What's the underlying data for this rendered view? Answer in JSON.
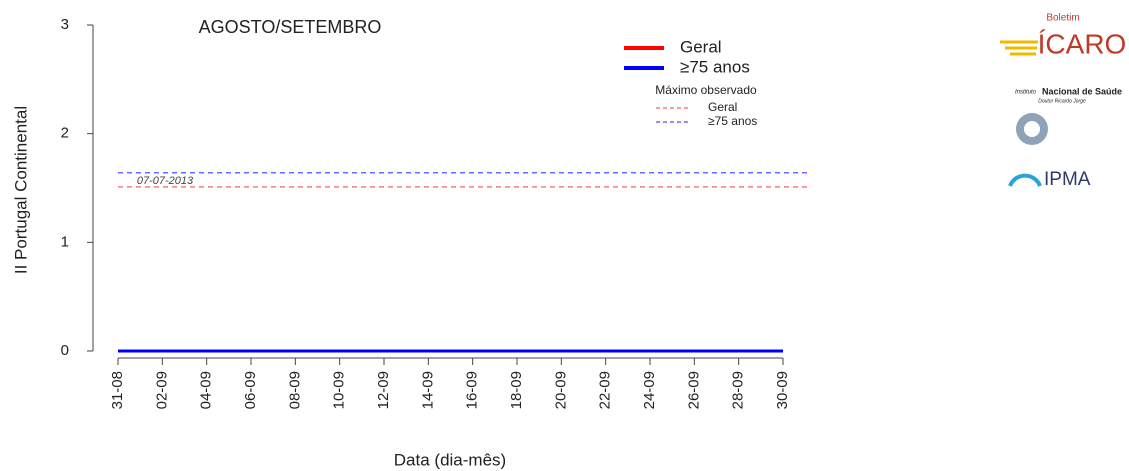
{
  "chart_data": {
    "type": "line",
    "title": "AGOSTO/SETEMBRO",
    "y_label": "II Portugal Continental",
    "x_label": "Data (dia-mês)",
    "categories": [
      "31-08",
      null,
      "02-09",
      null,
      "04-09",
      null,
      "06-09",
      null,
      "08-09",
      null,
      "10-09",
      null,
      "12-09",
      null,
      "14-09",
      null,
      "16-09",
      null,
      "18-09",
      null,
      "20-09",
      null,
      "22-09",
      null,
      "24-09",
      null,
      "26-09",
      null,
      "28-09",
      null,
      "30-09"
    ],
    "series": [
      {
        "name": "Geral",
        "color": "#ff0000",
        "values": [
          0,
          0,
          0,
          0,
          0,
          0,
          0,
          0,
          0,
          0,
          0,
          0,
          0,
          0,
          0,
          0,
          0,
          0,
          0,
          0,
          0,
          0,
          0,
          0,
          0,
          0,
          0,
          0,
          0,
          0,
          0
        ]
      },
      {
        "name": "≥75 anos",
        "color": "#0000ff",
        "values": [
          0,
          0,
          0,
          0,
          0,
          0,
          0,
          0,
          0,
          0,
          0,
          0,
          0,
          0,
          0,
          0,
          0,
          0,
          0,
          0,
          0,
          0,
          0,
          0,
          0,
          0,
          0,
          0,
          0,
          0,
          0
        ]
      }
    ],
    "reference_title": "Máximo observado",
    "reference_lines": [
      {
        "name": "Geral",
        "color": "#f08080",
        "value": 1.51
      },
      {
        "name": "≥75 anos",
        "color": "#6a6aff",
        "value": 1.64
      }
    ],
    "annotation": "07-07-2013",
    "ylim": [
      0,
      3
    ],
    "yticks": [
      0,
      1,
      2,
      3
    ]
  },
  "logos": {
    "boletim": "Boletim",
    "icaro": "ÍCARO",
    "insa_prefix": "Instituto",
    "insa": "Nacional de Saúde",
    "insa_sub": "Doutor Ricardo Jorge",
    "ipma": "IPMA"
  }
}
